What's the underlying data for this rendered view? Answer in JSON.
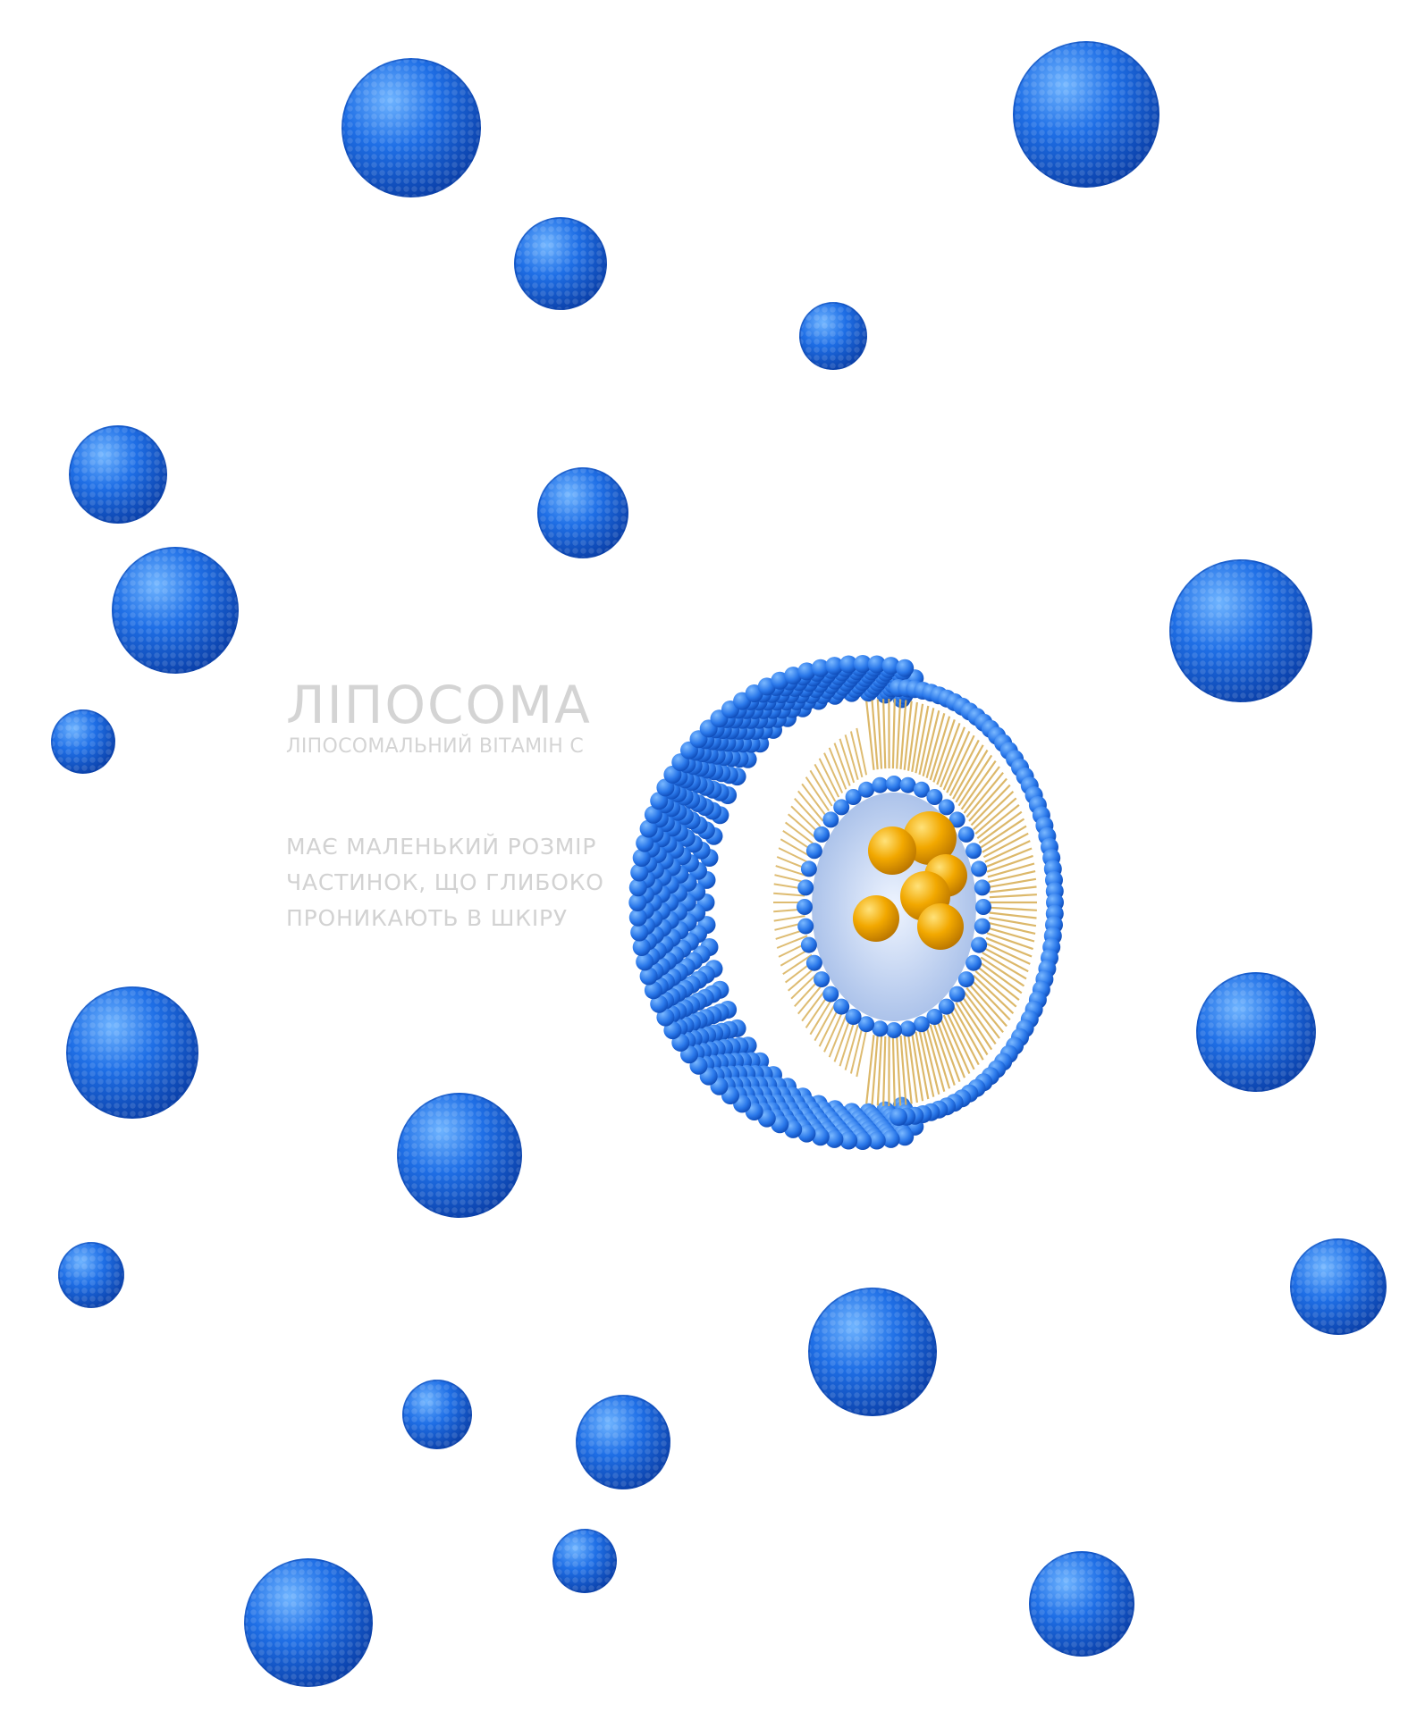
{
  "colors": {
    "sphere": "#1f6fe6",
    "sphere_light": "#5fa6ff",
    "sphere_dark": "#0a3fa8",
    "core": "#f2a800",
    "tails": "#d9b15a",
    "text": "#d4d4d4"
  },
  "title": "ЛІПОСОМА",
  "subtitle": "ЛІПОСОМАЛЬНИЙ ВІТАМІН С",
  "description": [
    "МАЄ МАЛЕНЬКИЙ РОЗМІР",
    "ЧАСТИНОК, ЩО ГЛИБОКО",
    "ПРОНИКАЮТЬ В ШКІРУ"
  ]
}
